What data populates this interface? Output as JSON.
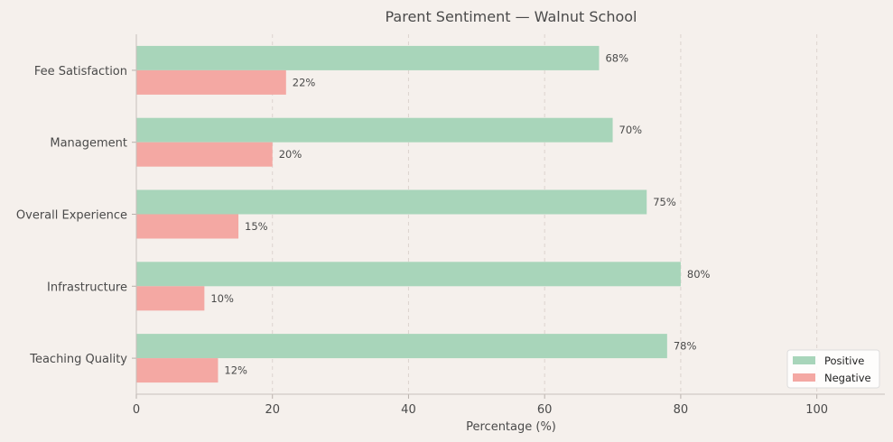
{
  "chart_data": {
    "type": "bar",
    "orientation": "horizontal",
    "title": "Parent Sentiment — Walnut School",
    "xlabel": "Percentage (%)",
    "ylabel": "",
    "categories": [
      "Teaching Quality",
      "Infrastructure",
      "Overall Experience",
      "Management",
      "Fee Satisfaction"
    ],
    "series": [
      {
        "name": "Positive",
        "values": [
          78,
          80,
          75,
          70,
          68
        ],
        "color": "#a8d5ba"
      },
      {
        "name": "Negative",
        "values": [
          12,
          10,
          15,
          20,
          22
        ],
        "color": "#f4a8a3"
      }
    ],
    "xlim": [
      0,
      110
    ],
    "xticks": [
      0,
      20,
      40,
      60,
      80,
      100
    ],
    "value_suffix": "%",
    "grid": "vertical-dashed",
    "legend_position": "lower-right"
  }
}
